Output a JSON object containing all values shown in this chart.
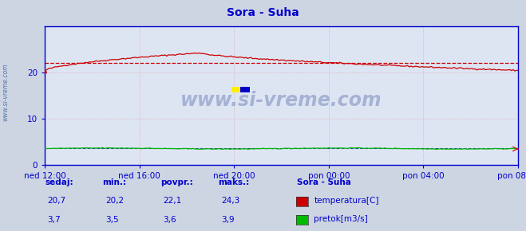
{
  "title": "Sora - Suha",
  "bg_color": "#cdd5e3",
  "plot_bg_color": "#dde5f3",
  "x_labels": [
    "ned 12:00",
    "ned 16:00",
    "ned 20:00",
    "pon 00:00",
    "pon 04:00",
    "pon 08:00"
  ],
  "y_ticks": [
    0,
    10,
    20
  ],
  "y_max": 30,
  "y_min": 0,
  "avg_line_value": 22.1,
  "temp_color": "#cc0000",
  "pretok_color": "#00bb00",
  "blue_line_color": "#0000cc",
  "axis_color": "#0000cc",
  "title_color": "#0000cc",
  "label_color": "#0000cc",
  "sidebar_text": "www.si-vreme.com",
  "legend_title": "Sora - Suha",
  "legend_items": [
    "temperatura[C]",
    "pretok[m3/s]"
  ],
  "legend_colors": [
    "#cc0000",
    "#00bb00"
  ],
  "stats_headers": [
    "sedaj:",
    "min.:",
    "povpr.:",
    "maks.:"
  ],
  "stats_temp": [
    "20,7",
    "20,2",
    "22,1",
    "24,3"
  ],
  "stats_pretok": [
    "3,7",
    "3,5",
    "3,6",
    "3,9"
  ],
  "n_points": 288,
  "watermark": "www.si-vreme.com"
}
